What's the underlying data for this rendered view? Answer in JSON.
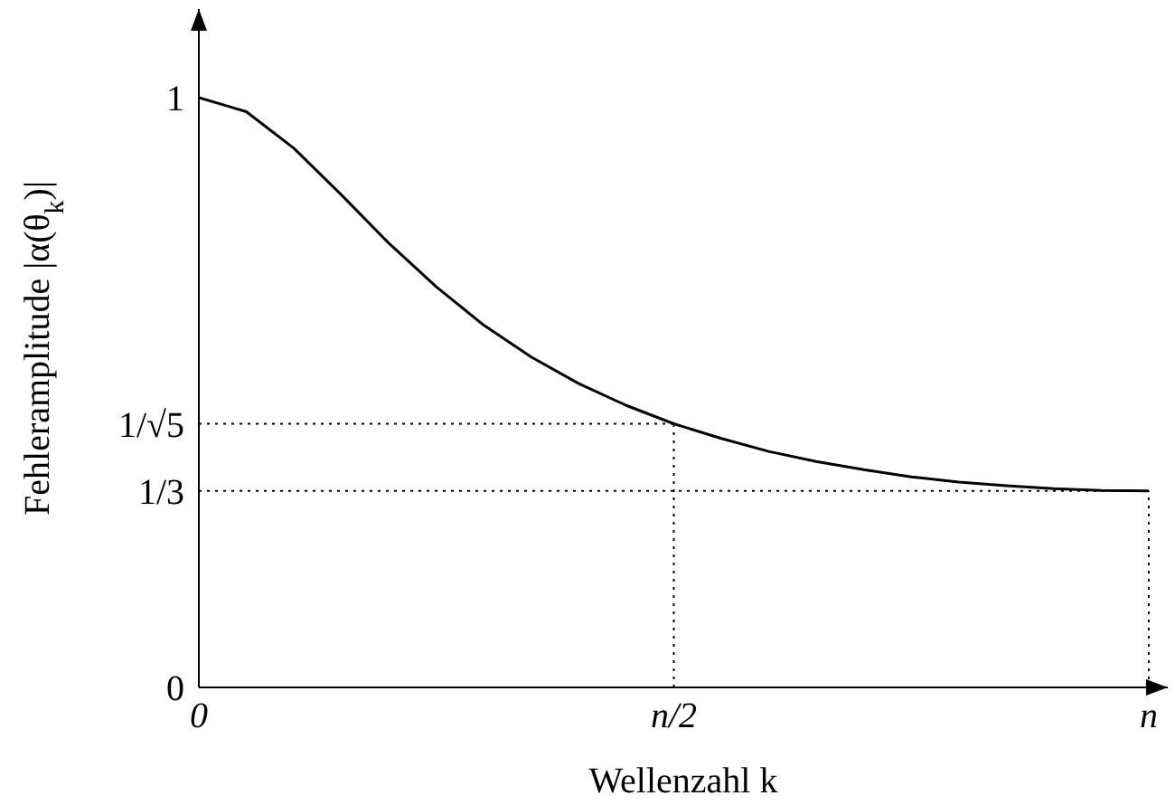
{
  "chart_data": {
    "type": "line",
    "xlabel": "Wellenzahl k",
    "ylabel": "Fehleramplitude |α(θ$_{k}$)|",
    "categories": [
      "0",
      null,
      null,
      null,
      null,
      null,
      null,
      null,
      null,
      null,
      "n/2",
      null,
      null,
      null,
      null,
      null,
      null,
      null,
      null,
      null,
      "n"
    ],
    "series": [
      {
        "color": "#000000",
        "values": [
          1,
          0.976,
          0.914,
          0.835,
          0.753,
          0.679,
          0.614,
          0.56,
          0.515,
          0.478,
          0.447,
          0.422,
          0.4,
          0.383,
          0.369,
          0.357,
          0.348,
          0.342,
          0.337,
          0.334,
          0.333
        ]
      }
    ],
    "ylim": [
      0,
      1.15
    ],
    "yticks": [
      0,
      {
        "value": 0.333,
        "label": "1/3"
      },
      {
        "value": 0.447,
        "label": "1/√5"
      },
      1
    ],
    "ref_lines": [
      {
        "axis": "y",
        "value": 0.447,
        "line_style": "dotted"
      },
      {
        "axis": "y",
        "value": 0.333,
        "line_style": "dotted"
      },
      {
        "axis": "x",
        "value": "n/2",
        "line_style": "dotted"
      },
      {
        "axis": "x",
        "value": "n",
        "line_style": "dotted"
      }
    ],
    "grid": false,
    "marker": "none",
    "line_style": "solid"
  }
}
